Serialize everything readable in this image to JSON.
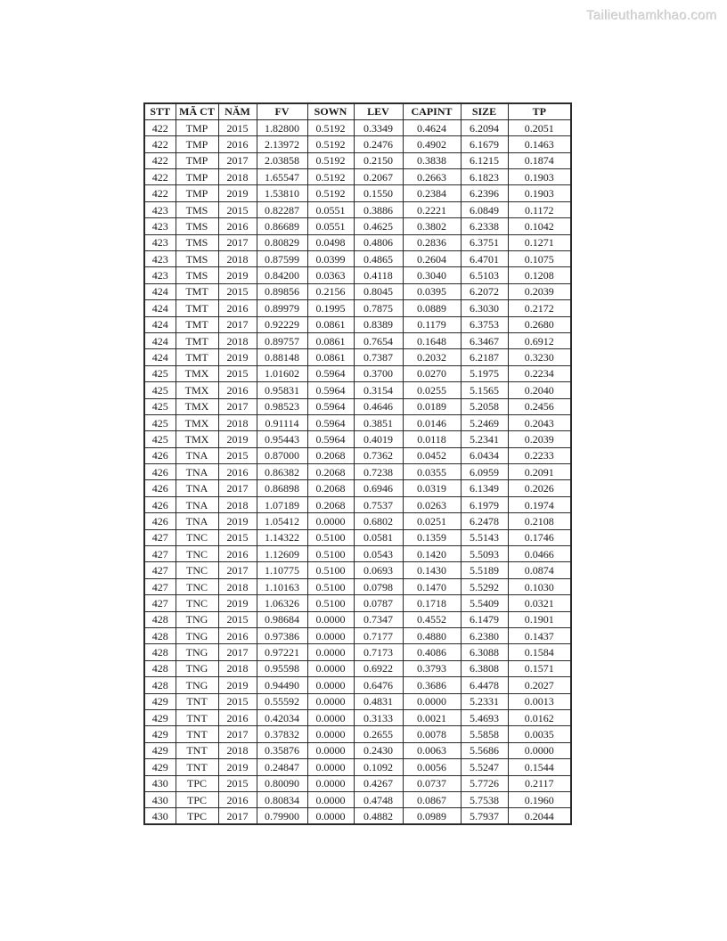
{
  "watermark": "Tailieuthamkhao.com",
  "table": {
    "headers": [
      "STT",
      "MÃ CT",
      "NĂM",
      "FV",
      "SOWN",
      "LEV",
      "CAPINT",
      "SIZE",
      "TP"
    ],
    "rows": [
      [
        "422",
        "TMP",
        "2015",
        "1.82800",
        "0.5192",
        "0.3349",
        "0.4624",
        "6.2094",
        "0.2051"
      ],
      [
        "422",
        "TMP",
        "2016",
        "2.13972",
        "0.5192",
        "0.2476",
        "0.4902",
        "6.1679",
        "0.1463"
      ],
      [
        "422",
        "TMP",
        "2017",
        "2.03858",
        "0.5192",
        "0.2150",
        "0.3838",
        "6.1215",
        "0.1874"
      ],
      [
        "422",
        "TMP",
        "2018",
        "1.65547",
        "0.5192",
        "0.2067",
        "0.2663",
        "6.1823",
        "0.1903"
      ],
      [
        "422",
        "TMP",
        "2019",
        "1.53810",
        "0.5192",
        "0.1550",
        "0.2384",
        "6.2396",
        "0.1903"
      ],
      [
        "423",
        "TMS",
        "2015",
        "0.82287",
        "0.0551",
        "0.3886",
        "0.2221",
        "6.0849",
        "0.1172"
      ],
      [
        "423",
        "TMS",
        "2016",
        "0.86689",
        "0.0551",
        "0.4625",
        "0.3802",
        "6.2338",
        "0.1042"
      ],
      [
        "423",
        "TMS",
        "2017",
        "0.80829",
        "0.0498",
        "0.4806",
        "0.2836",
        "6.3751",
        "0.1271"
      ],
      [
        "423",
        "TMS",
        "2018",
        "0.87599",
        "0.0399",
        "0.4865",
        "0.2604",
        "6.4701",
        "0.1075"
      ],
      [
        "423",
        "TMS",
        "2019",
        "0.84200",
        "0.0363",
        "0.4118",
        "0.3040",
        "6.5103",
        "0.1208"
      ],
      [
        "424",
        "TMT",
        "2015",
        "0.89856",
        "0.2156",
        "0.8045",
        "0.0395",
        "6.2072",
        "0.2039"
      ],
      [
        "424",
        "TMT",
        "2016",
        "0.89979",
        "0.1995",
        "0.7875",
        "0.0889",
        "6.3030",
        "0.2172"
      ],
      [
        "424",
        "TMT",
        "2017",
        "0.92229",
        "0.0861",
        "0.8389",
        "0.1179",
        "6.3753",
        "0.2680"
      ],
      [
        "424",
        "TMT",
        "2018",
        "0.89757",
        "0.0861",
        "0.7654",
        "0.1648",
        "6.3467",
        "0.6912"
      ],
      [
        "424",
        "TMT",
        "2019",
        "0.88148",
        "0.0861",
        "0.7387",
        "0.2032",
        "6.2187",
        "0.3230"
      ],
      [
        "425",
        "TMX",
        "2015",
        "1.01602",
        "0.5964",
        "0.3700",
        "0.0270",
        "5.1975",
        "0.2234"
      ],
      [
        "425",
        "TMX",
        "2016",
        "0.95831",
        "0.5964",
        "0.3154",
        "0.0255",
        "5.1565",
        "0.2040"
      ],
      [
        "425",
        "TMX",
        "2017",
        "0.98523",
        "0.5964",
        "0.4646",
        "0.0189",
        "5.2058",
        "0.2456"
      ],
      [
        "425",
        "TMX",
        "2018",
        "0.91114",
        "0.5964",
        "0.3851",
        "0.0146",
        "5.2469",
        "0.2043"
      ],
      [
        "425",
        "TMX",
        "2019",
        "0.95443",
        "0.5964",
        "0.4019",
        "0.0118",
        "5.2341",
        "0.2039"
      ],
      [
        "426",
        "TNA",
        "2015",
        "0.87000",
        "0.2068",
        "0.7362",
        "0.0452",
        "6.0434",
        "0.2233"
      ],
      [
        "426",
        "TNA",
        "2016",
        "0.86382",
        "0.2068",
        "0.7238",
        "0.0355",
        "6.0959",
        "0.2091"
      ],
      [
        "426",
        "TNA",
        "2017",
        "0.86898",
        "0.2068",
        "0.6946",
        "0.0319",
        "6.1349",
        "0.2026"
      ],
      [
        "426",
        "TNA",
        "2018",
        "1.07189",
        "0.2068",
        "0.7537",
        "0.0263",
        "6.1979",
        "0.1974"
      ],
      [
        "426",
        "TNA",
        "2019",
        "1.05412",
        "0.0000",
        "0.6802",
        "0.0251",
        "6.2478",
        "0.2108"
      ],
      [
        "427",
        "TNC",
        "2015",
        "1.14322",
        "0.5100",
        "0.0581",
        "0.1359",
        "5.5143",
        "0.1746"
      ],
      [
        "427",
        "TNC",
        "2016",
        "1.12609",
        "0.5100",
        "0.0543",
        "0.1420",
        "5.5093",
        "0.0466"
      ],
      [
        "427",
        "TNC",
        "2017",
        "1.10775",
        "0.5100",
        "0.0693",
        "0.1430",
        "5.5189",
        "0.0874"
      ],
      [
        "427",
        "TNC",
        "2018",
        "1.10163",
        "0.5100",
        "0.0798",
        "0.1470",
        "5.5292",
        "0.1030"
      ],
      [
        "427",
        "TNC",
        "2019",
        "1.06326",
        "0.5100",
        "0.0787",
        "0.1718",
        "5.5409",
        "0.0321"
      ],
      [
        "428",
        "TNG",
        "2015",
        "0.98684",
        "0.0000",
        "0.7347",
        "0.4552",
        "6.1479",
        "0.1901"
      ],
      [
        "428",
        "TNG",
        "2016",
        "0.97386",
        "0.0000",
        "0.7177",
        "0.4880",
        "6.2380",
        "0.1437"
      ],
      [
        "428",
        "TNG",
        "2017",
        "0.97221",
        "0.0000",
        "0.7173",
        "0.4086",
        "6.3088",
        "0.1584"
      ],
      [
        "428",
        "TNG",
        "2018",
        "0.95598",
        "0.0000",
        "0.6922",
        "0.3793",
        "6.3808",
        "0.1571"
      ],
      [
        "428",
        "TNG",
        "2019",
        "0.94490",
        "0.0000",
        "0.6476",
        "0.3686",
        "6.4478",
        "0.2027"
      ],
      [
        "429",
        "TNT",
        "2015",
        "0.55592",
        "0.0000",
        "0.4831",
        "0.0000",
        "5.2331",
        "0.0013"
      ],
      [
        "429",
        "TNT",
        "2016",
        "0.42034",
        "0.0000",
        "0.3133",
        "0.0021",
        "5.4693",
        "0.0162"
      ],
      [
        "429",
        "TNT",
        "2017",
        "0.37832",
        "0.0000",
        "0.2655",
        "0.0078",
        "5.5858",
        "0.0035"
      ],
      [
        "429",
        "TNT",
        "2018",
        "0.35876",
        "0.0000",
        "0.2430",
        "0.0063",
        "5.5686",
        "0.0000"
      ],
      [
        "429",
        "TNT",
        "2019",
        "0.24847",
        "0.0000",
        "0.1092",
        "0.0056",
        "5.5247",
        "0.1544"
      ],
      [
        "430",
        "TPC",
        "2015",
        "0.80090",
        "0.0000",
        "0.4267",
        "0.0737",
        "5.7726",
        "0.2117"
      ],
      [
        "430",
        "TPC",
        "2016",
        "0.80834",
        "0.0000",
        "0.4748",
        "0.0867",
        "5.7538",
        "0.1960"
      ],
      [
        "430",
        "TPC",
        "2017",
        "0.79900",
        "0.0000",
        "0.4882",
        "0.0989",
        "5.7937",
        "0.2044"
      ]
    ]
  }
}
